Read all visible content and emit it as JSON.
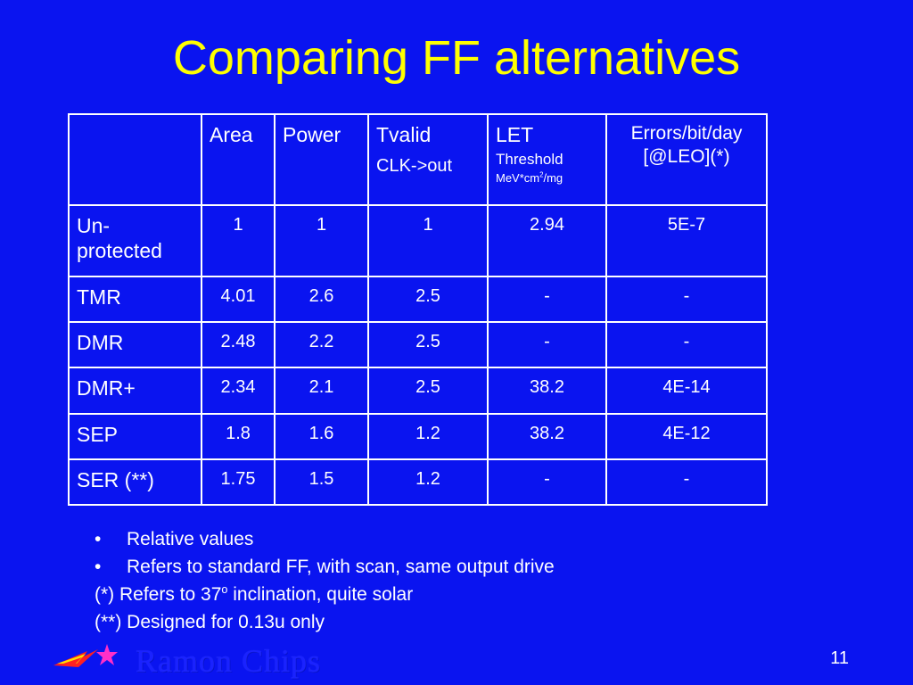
{
  "title": "Comparing FF alternatives",
  "table": {
    "headers": {
      "area": "Area",
      "power": "Power",
      "tvalid": "Tvalid",
      "tvalid_sub": "CLK->out",
      "let": "LET",
      "let_sub": "Threshold",
      "let_unit_a": "MeV*cm",
      "let_unit_exp": "2",
      "let_unit_b": "/mg",
      "errors_line1": "Errors/bit/day",
      "errors_line2": "[@LEO](*)"
    },
    "rows": [
      {
        "label": "Un-protected",
        "area": "1",
        "power": "1",
        "tvalid": "1",
        "let": "2.94",
        "errors": "5E-7"
      },
      {
        "label": "TMR",
        "area": "4.01",
        "power": "2.6",
        "tvalid": "2.5",
        "let": "-",
        "errors": "-"
      },
      {
        "label": "DMR",
        "area": "2.48",
        "power": "2.2",
        "tvalid": "2.5",
        "let": "-",
        "errors": "-"
      },
      {
        "label": "DMR+",
        "area": "2.34",
        "power": "2.1",
        "tvalid": "2.5",
        "let": "38.2",
        "errors": "4E-14"
      },
      {
        "label": "SEP",
        "area": "1.8",
        "power": "1.6",
        "tvalid": "1.2",
        "let": "38.2",
        "errors": "4E-12"
      },
      {
        "label": "SER (**)",
        "area": "1.75",
        "power": "1.5",
        "tvalid": "1.2",
        "let": "-",
        "errors": "-"
      }
    ]
  },
  "notes": {
    "bullet": "•",
    "bullet1": "Relative values",
    "bullet2": "Refers to standard FF, with scan, same output drive",
    "note1_a": "(*) Refers to 37",
    "note1_sup": "o",
    "note1_b": " inclination, quite solar",
    "note2": "(**) Designed for 0.13u only"
  },
  "footer": {
    "brand": "Ramon Chips",
    "page_number": "11"
  },
  "colors": {
    "background": "#0a14f0",
    "title": "#ffff00",
    "text": "#ffffff",
    "logo_red": "#ff2020",
    "logo_yellow": "#ffe000",
    "logo_magenta": "#ff2fc8"
  },
  "icons": {
    "logo": "star-comet-logo-icon"
  }
}
